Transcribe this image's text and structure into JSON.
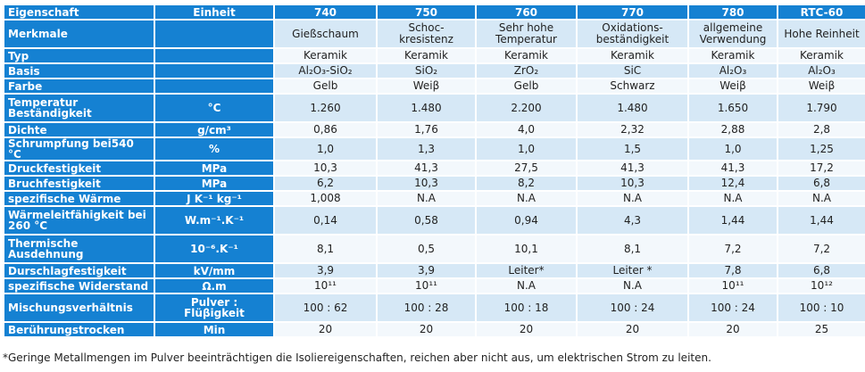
{
  "header": [
    "Eigenschaft",
    "Einheit",
    "740",
    "750",
    "760",
    "770",
    "780",
    "RTC-60"
  ],
  "rows": [
    {
      "label": "Merkmale",
      "unit": "",
      "values": [
        "Gießschaum",
        "Schoc-\nkresistenz",
        "Sehr hohe\nTemperatur",
        "Oxidations-\nbeständigkeit",
        "allgemeine\nVerwendung",
        "Hohe Reinheit"
      ]
    },
    {
      "label": "Typ",
      "unit": "",
      "values": [
        "Keramik",
        "Keramik",
        "Keramik",
        "Keramik",
        "Keramik",
        "Keramik"
      ]
    },
    {
      "label": "Basis",
      "unit": "",
      "values": [
        "Al₂O₃-SiO₂",
        "SiO₂",
        "ZrO₂",
        "SiC",
        "Al₂O₃",
        "Al₂O₃"
      ]
    },
    {
      "label": "Farbe",
      "unit": "",
      "values": [
        "Gelb",
        "Weiβ",
        "Gelb",
        "Schwarz",
        "Weiβ",
        "Weiβ"
      ]
    },
    {
      "label": "Temperatur\nBeständigkeit",
      "unit": "°C",
      "values": [
        "1.260",
        "1.480",
        "2.200",
        "1.480",
        "1.650",
        "1.790"
      ]
    },
    {
      "label": "Dichte",
      "unit": "g/cm³",
      "values": [
        "0,86",
        "1,76",
        "4,0",
        "2,32",
        "2,88",
        "2,8"
      ]
    },
    {
      "label": "Schrumpfung bei540 °C",
      "unit": "%",
      "values": [
        "1,0",
        "1,3",
        "1,0",
        "1,5",
        "1,0",
        "1,25"
      ]
    },
    {
      "label": "Druckfestigkeit",
      "unit": "MPa",
      "values": [
        "10,3",
        "41,3",
        "27,5",
        "41,3",
        "41,3",
        "17,2"
      ]
    },
    {
      "label": "Bruchfestigkeit",
      "unit": "MPa",
      "values": [
        "6,2",
        "10,3",
        "8,2",
        "10,3",
        "12,4",
        "6,8"
      ]
    },
    {
      "label": "spezifische Wärme",
      "unit": "J K⁻¹ kg⁻¹",
      "values": [
        "1,008",
        "N.A",
        "N.A",
        "N.A",
        "N.A",
        "N.A"
      ]
    },
    {
      "label": "Wärmeleitfähigkeit bei\n260 °C",
      "unit": "W.m⁻¹.K⁻¹",
      "values": [
        "0,14",
        "0,58",
        "0,94",
        "4,3",
        "1,44",
        "1,44"
      ]
    },
    {
      "label": "Thermische\nAusdehnung",
      "unit": "10⁻⁶.K⁻¹",
      "values": [
        "8,1",
        "0,5",
        "10,1",
        "8,1",
        "7,2",
        "7,2"
      ]
    },
    {
      "label": "Durschlagfestigkeit",
      "unit": "kV/mm",
      "values": [
        "3,9",
        "3,9",
        "Leiter*",
        "Leiter *",
        "7,8",
        "6,8"
      ]
    },
    {
      "label": "spezifische Widerstand",
      "unit": "Ω.m",
      "values": [
        "10¹¹",
        "10¹¹",
        "N.A",
        "N.A",
        "10¹¹",
        "10¹²"
      ]
    },
    {
      "label": "Mischungsverhältnis",
      "unit": "Pulver :\nFlüβigkeit",
      "values": [
        "100 : 62",
        "100 : 28",
        "100 : 18",
        "100 : 24",
        "100 : 24",
        "100 : 10"
      ]
    },
    {
      "label": "Berührungstrocken",
      "unit": "Min",
      "values": [
        "20",
        "20",
        "20",
        "20",
        "20",
        "25"
      ]
    }
  ],
  "footnote": "*Geringe Metallmengen im Pulver beeinträchtigen die Isoliereigenschaften, reichen aber nicht aus, um elektrischen Strom zu leiten."
}
